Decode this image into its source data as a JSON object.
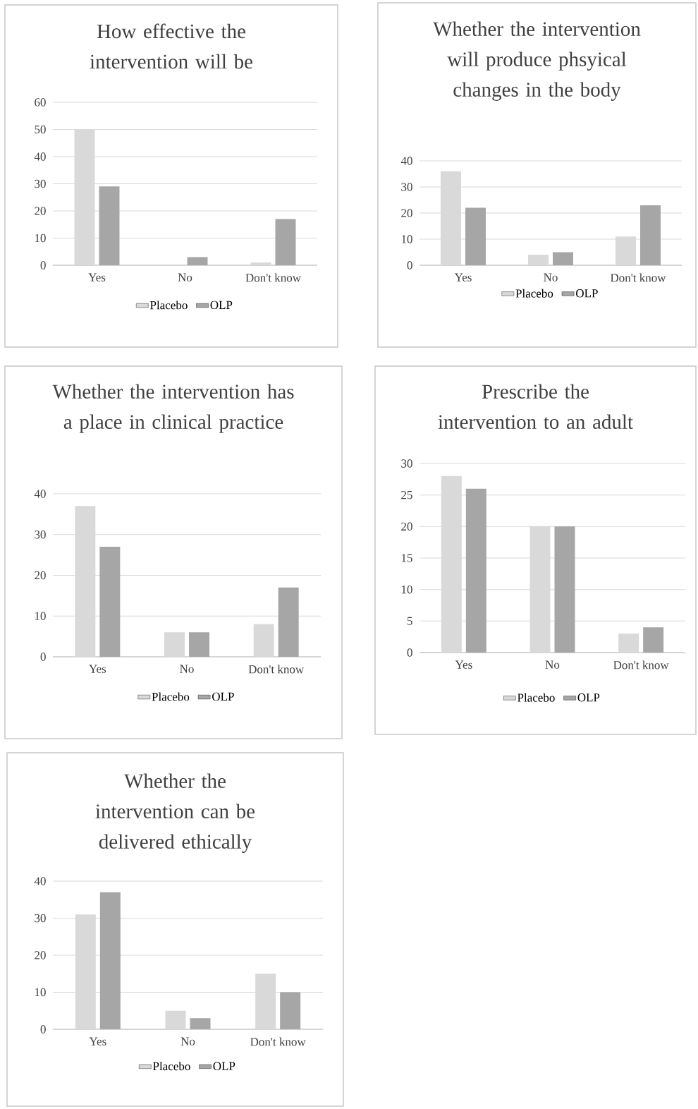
{
  "chart_data": [
    {
      "type": "bar",
      "title": "How effective the intervention will be",
      "categories": [
        "Yes",
        "No",
        "Don't know"
      ],
      "series": [
        {
          "name": "Placebo",
          "color": "#d9d9d9",
          "values": [
            50,
            0,
            1
          ]
        },
        {
          "name": "OLP",
          "color": "#a6a6a6",
          "values": [
            29,
            3,
            17
          ]
        }
      ],
      "ylim": [
        0,
        60
      ],
      "yticks": [
        0,
        10,
        20,
        30,
        40,
        50,
        60
      ],
      "grid": "y",
      "legend": "bottom"
    },
    {
      "type": "bar",
      "title": "Whether the intervention will produce phsyical changes in the body",
      "categories": [
        "Yes",
        "No",
        "Don't know"
      ],
      "series": [
        {
          "name": "Placebo",
          "color": "#d9d9d9",
          "values": [
            36,
            4,
            11
          ]
        },
        {
          "name": "OLP",
          "color": "#a6a6a6",
          "values": [
            22,
            5,
            23
          ]
        }
      ],
      "ylim": [
        0,
        40
      ],
      "yticks": [
        0,
        10,
        20,
        30,
        40
      ],
      "grid": "y",
      "legend": "bottom"
    },
    {
      "type": "bar",
      "title": "Whether the intervention has a place in clinical practice",
      "categories": [
        "Yes",
        "No",
        "Don't know"
      ],
      "series": [
        {
          "name": "Placebo",
          "color": "#d9d9d9",
          "values": [
            37,
            6,
            8
          ]
        },
        {
          "name": "OLP",
          "color": "#a6a6a6",
          "values": [
            27,
            6,
            17
          ]
        }
      ],
      "ylim": [
        0,
        40
      ],
      "yticks": [
        0,
        10,
        20,
        30,
        40
      ],
      "grid": "y",
      "legend": "bottom"
    },
    {
      "type": "bar",
      "title": "Prescribe the intervention to an adult",
      "categories": [
        "Yes",
        "No",
        "Don't know"
      ],
      "series": [
        {
          "name": "Placebo",
          "color": "#d9d9d9",
          "values": [
            28,
            20,
            3
          ]
        },
        {
          "name": "OLP",
          "color": "#a6a6a6",
          "values": [
            26,
            20,
            4
          ]
        }
      ],
      "ylim": [
        0,
        30
      ],
      "yticks": [
        0,
        5,
        10,
        15,
        20,
        25,
        30
      ],
      "grid": "y",
      "legend": "bottom"
    },
    {
      "type": "bar",
      "title": "Whether the intervention can be delivered ethically",
      "categories": [
        "Yes",
        "No",
        "Don't know"
      ],
      "series": [
        {
          "name": "Placebo",
          "color": "#d9d9d9",
          "values": [
            31,
            5,
            15
          ]
        },
        {
          "name": "OLP",
          "color": "#a6a6a6",
          "values": [
            37,
            3,
            10
          ]
        }
      ],
      "ylim": [
        0,
        40
      ],
      "yticks": [
        0,
        10,
        20,
        30,
        40
      ],
      "grid": "y",
      "legend": "bottom"
    }
  ]
}
